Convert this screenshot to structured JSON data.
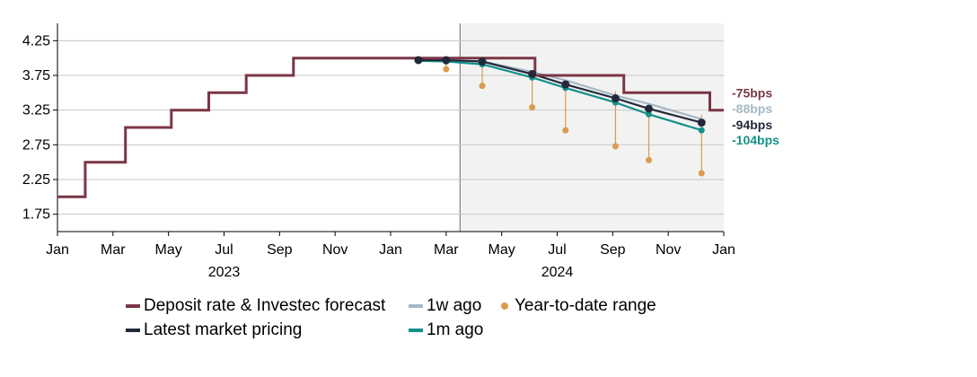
{
  "chart_data": {
    "type": "line",
    "y_ticks": [
      "4.25",
      "3.75",
      "3.25",
      "2.75",
      "2.25",
      "1.75"
    ],
    "ylim": [
      1.5,
      4.5
    ],
    "x_ticks": [
      "Jan",
      "Mar",
      "May",
      "Jul",
      "Sep",
      "Nov",
      "Jan",
      "Mar",
      "May",
      "Jul",
      "Sep",
      "Nov",
      "Jan"
    ],
    "x_tick_months": [
      0,
      2,
      4,
      6,
      8,
      10,
      12,
      14,
      16,
      18,
      20,
      22,
      24
    ],
    "year_labels": [
      {
        "label": "2023",
        "month": 6
      },
      {
        "label": "2024",
        "month": 18
      }
    ],
    "forecast_start_month": 14.5,
    "series": [
      {
        "name": "Deposit rate & Investec forecast",
        "color": "#7b3646",
        "style": "step",
        "points": [
          [
            0,
            2.0
          ],
          [
            1.0,
            2.0
          ],
          [
            1.0,
            2.5
          ],
          [
            2.45,
            2.5
          ],
          [
            2.45,
            3.0
          ],
          [
            4.1,
            3.0
          ],
          [
            4.1,
            3.25
          ],
          [
            5.45,
            3.25
          ],
          [
            5.45,
            3.5
          ],
          [
            6.8,
            3.5
          ],
          [
            6.8,
            3.75
          ],
          [
            8.5,
            3.75
          ],
          [
            8.5,
            4.0
          ],
          [
            17.2,
            4.0
          ],
          [
            17.2,
            3.75
          ],
          [
            20.4,
            3.75
          ],
          [
            20.4,
            3.5
          ],
          [
            23.5,
            3.5
          ],
          [
            23.5,
            3.25
          ],
          [
            24.0,
            3.25
          ]
        ]
      },
      {
        "name": "1w ago",
        "color": "#a5b8c5",
        "style": "line",
        "points": [
          [
            13.0,
            3.97
          ],
          [
            14.0,
            3.97
          ],
          [
            15.3,
            3.95
          ],
          [
            17.1,
            3.8
          ],
          [
            18.3,
            3.68
          ],
          [
            20.1,
            3.46
          ],
          [
            21.3,
            3.34
          ],
          [
            23.2,
            3.12
          ]
        ]
      },
      {
        "name": "Latest market pricing",
        "color": "#22293a",
        "style": "line-markers",
        "points": [
          [
            13.0,
            3.97
          ],
          [
            14.0,
            3.97
          ],
          [
            15.3,
            3.95
          ],
          [
            17.1,
            3.77
          ],
          [
            18.3,
            3.62
          ],
          [
            20.1,
            3.42
          ],
          [
            21.3,
            3.27
          ],
          [
            23.2,
            3.07
          ]
        ]
      },
      {
        "name": "1m ago",
        "color": "#14918a",
        "style": "line-markers",
        "points": [
          [
            13.0,
            3.96
          ],
          [
            14.0,
            3.95
          ],
          [
            15.3,
            3.91
          ],
          [
            17.1,
            3.72
          ],
          [
            18.3,
            3.57
          ],
          [
            20.1,
            3.36
          ],
          [
            21.3,
            3.19
          ],
          [
            23.2,
            2.96
          ]
        ]
      }
    ],
    "ytd_range": {
      "name": "Year-to-date range",
      "color": "#d99a4c",
      "points": [
        [
          14.0,
          3.84,
          3.97
        ],
        [
          15.3,
          3.6,
          3.95
        ],
        [
          17.1,
          3.29,
          3.8
        ],
        [
          18.3,
          2.96,
          3.68
        ],
        [
          20.1,
          2.73,
          3.52
        ],
        [
          21.3,
          2.53,
          3.34
        ],
        [
          23.2,
          2.34,
          3.18
        ]
      ]
    },
    "annotations": [
      {
        "text": "-75bps",
        "color": "#7b3646",
        "value": 3.5
      },
      {
        "text": "-88bps",
        "color": "#a5b8c5",
        "value": 3.27
      },
      {
        "text": "-94bps",
        "color": "#22293a",
        "value": 3.04
      },
      {
        "text": "-104bps",
        "color": "#14918a",
        "value": 2.82
      }
    ]
  },
  "legend": {
    "deposit": "Deposit rate & Investec forecast",
    "week": "1w ago",
    "ytd": "Year-to-date range",
    "latest": "Latest market pricing",
    "month": "1m ago"
  }
}
